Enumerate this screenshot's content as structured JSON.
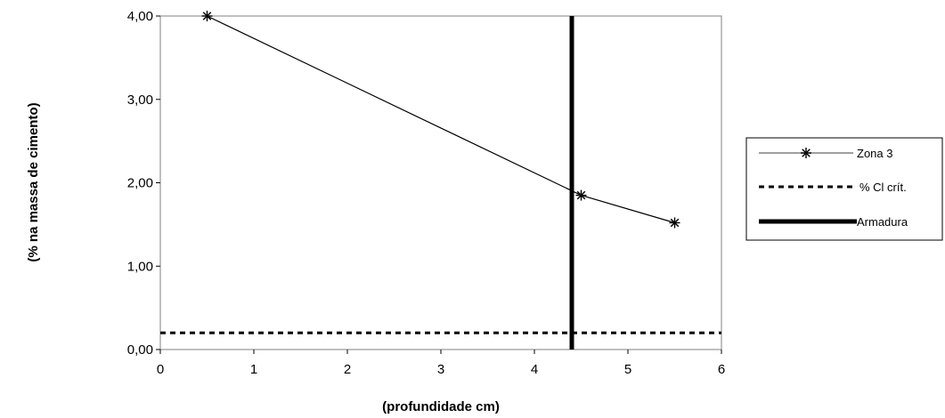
{
  "chart_data": {
    "type": "line",
    "xlabel": "(profundidade cm)",
    "ylabel": "(% na massa de cimento)",
    "xlim": [
      0,
      6
    ],
    "ylim": [
      0,
      4
    ],
    "x_ticks": [
      0,
      1,
      2,
      3,
      4,
      5,
      6
    ],
    "y_ticks": [
      0,
      1,
      2,
      3,
      4
    ],
    "x_tick_labels": [
      "0",
      "1",
      "2",
      "3",
      "4",
      "5",
      "6"
    ],
    "y_tick_labels": [
      "0,00",
      "1,00",
      "2,00",
      "3,00",
      "4,00"
    ],
    "grid": false,
    "legend_position": "right",
    "series": [
      {
        "name": "Zona 3",
        "style": "line-asterisk",
        "color": "#000000",
        "x": [
          0.5,
          4.5,
          5.5
        ],
        "y": [
          4.0,
          1.85,
          1.52
        ]
      },
      {
        "name": "% Cl crít.",
        "style": "dashed-horizontal",
        "color": "#000000",
        "y": 0.2
      },
      {
        "name": "Armadura",
        "style": "thick-vertical",
        "color": "#000000",
        "x": 4.4
      }
    ]
  }
}
